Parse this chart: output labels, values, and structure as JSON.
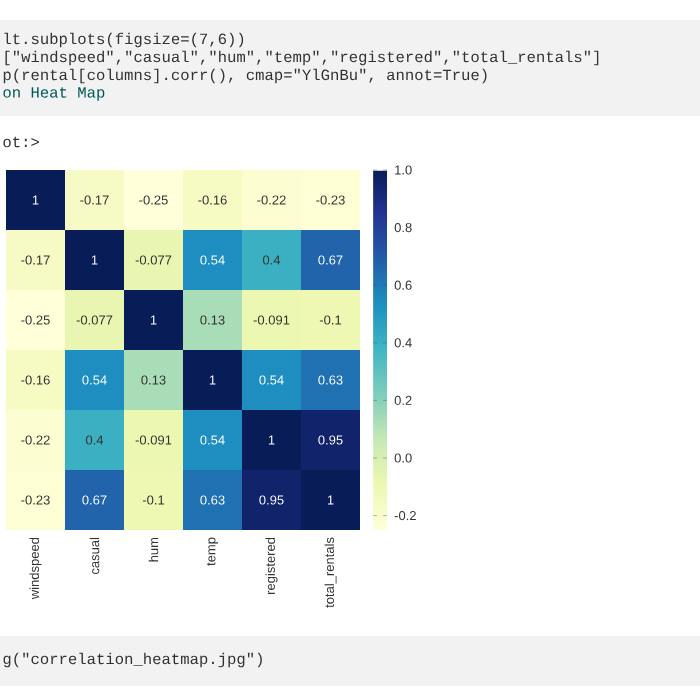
{
  "chart_data": {
    "type": "heatmap",
    "categories": [
      "windspeed",
      "casual",
      "hum",
      "temp",
      "registered",
      "total_rentals"
    ],
    "y_categories": [
      null,
      null,
      null,
      null,
      null,
      null
    ],
    "cells": [
      [
        1,
        -0.17,
        -0.25,
        -0.16,
        -0.22,
        -0.23
      ],
      [
        -0.17,
        1,
        -0.077,
        0.54,
        0.4,
        0.67
      ],
      [
        -0.25,
        -0.077,
        1,
        0.13,
        -0.091,
        -0.1
      ],
      [
        -0.16,
        0.54,
        0.13,
        1,
        0.54,
        0.63
      ],
      [
        -0.22,
        0.4,
        -0.091,
        0.54,
        1,
        0.95
      ],
      [
        -0.23,
        0.67,
        -0.1,
        0.63,
        0.95,
        1
      ]
    ],
    "data_labels": true,
    "clim": [
      -0.25,
      1.0
    ],
    "cticks": [
      -0.2,
      {
        "value": 0,
        "label": "0.0"
      },
      0.2,
      0.4,
      0.6,
      0.8,
      {
        "value": 1,
        "label": "1.0"
      }
    ],
    "tick_labels": "x",
    "annotations": [
      "lt.subplots(figsize=(7,6))",
      "[\"windspeed\",\"casual\",\"hum\",\"temp\",\"registered\",\"total_rentals\"]",
      "p(rental[columns].corr(), cmap=\"YlGnBu\", annot=True)",
      "on Heat Map",
      "ot:>",
      "g(\"correlation_heatmap.jpg\")"
    ]
  }
}
